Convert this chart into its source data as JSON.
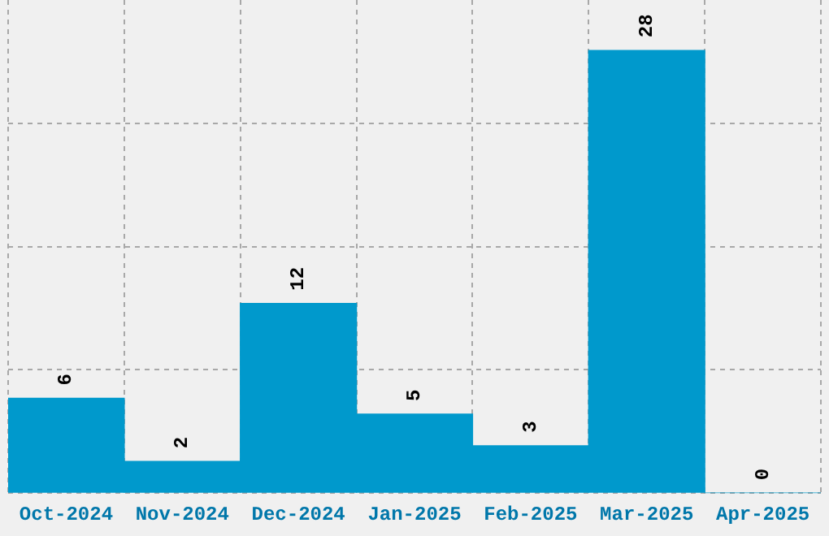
{
  "chart_data": {
    "type": "bar",
    "categories": [
      "Oct-2024",
      "Nov-2024",
      "Dec-2024",
      "Jan-2025",
      "Feb-2025",
      "Mar-2025",
      "Apr-2025"
    ],
    "values": [
      6,
      2,
      12,
      5,
      3,
      28,
      0
    ],
    "color": "#0099cc",
    "ylim": [
      0,
      31.2
    ],
    "yticks": [
      {
        "value": 0,
        "label": null
      },
      {
        "value": 7.8,
        "label": null
      },
      {
        "value": 15.6,
        "label": null
      },
      {
        "value": 23.4,
        "label": null
      }
    ],
    "grid": true,
    "data_labels": true,
    "tick_labels": "x"
  }
}
